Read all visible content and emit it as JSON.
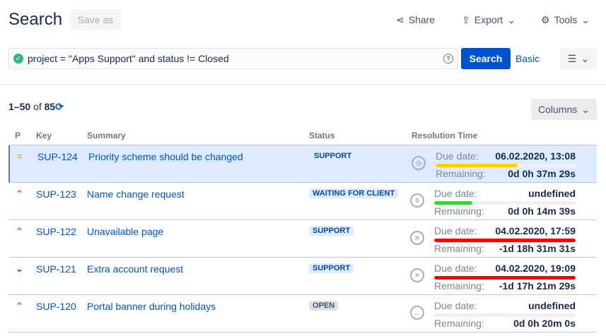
{
  "header": {
    "title": "Search",
    "save_as": "Save as",
    "share": "Share",
    "export": "Export",
    "tools": "Tools"
  },
  "search": {
    "query": "project = \"Apps Support\" and status != Closed",
    "search_label": "Search",
    "basic_label": "Basic"
  },
  "results": {
    "range": "1–50",
    "of": "of",
    "total": "85",
    "columns_label": "Columns"
  },
  "table": {
    "headers": [
      "P",
      "Key",
      "Summary",
      "Status",
      "Resolution Time"
    ],
    "rows": [
      {
        "priority": "medium",
        "priority_glyph": "=",
        "priority_color": "#ff991f",
        "key": "SUP-124",
        "summary": "Priority scheme should be changed",
        "status": "SUPPORT",
        "status_style": "blue",
        "icon": "clock-icon",
        "due_label": "Due date:",
        "due": "06.02.2020, 13:08",
        "progress": 58,
        "bar_color": "#ffd000",
        "remaining_label": "Remaining:",
        "remaining": "0d 0h 37m 29s",
        "selected": true
      },
      {
        "priority": "high",
        "priority_glyph": "⌃",
        "priority_color": "#ff5630",
        "key": "SUP-123",
        "summary": "Name change request",
        "status": "WAITING FOR CLIENT",
        "status_style": "blue",
        "icon": "pause-icon",
        "due_label": "Due date:",
        "due": "undefined",
        "progress": 27,
        "bar_color": "#22e61e",
        "remaining_label": "Remaining:",
        "remaining": "0d 0h 14m 39s"
      },
      {
        "priority": "high",
        "priority_glyph": "⌃",
        "priority_color": "#ff5630",
        "key": "SUP-122",
        "summary": "Unavailable page",
        "status": "SUPPORT",
        "status_style": "blue",
        "icon": "clock-overdue-icon",
        "due_label": "Due date:",
        "due": "04.02.2020, 17:59",
        "progress": 100,
        "bar_color": "#ff0000",
        "remaining_label": "Remaining:",
        "remaining": "-1d 18h 31m 31s"
      },
      {
        "priority": "low",
        "priority_glyph": "⌄",
        "priority_color": "#0065ff",
        "key": "SUP-121",
        "summary": "Extra account request",
        "status": "SUPPORT",
        "status_style": "blue",
        "icon": "clock-overdue-icon",
        "due_label": "Due date:",
        "due": "04.02.2020, 19:09",
        "progress": 100,
        "bar_color": "#ff0000",
        "remaining_label": "Remaining:",
        "remaining": "-1d 17h 21m 29s"
      },
      {
        "priority": "high",
        "priority_glyph": "⌃",
        "priority_color": "#ff5630",
        "key": "SUP-120",
        "summary": "Portal banner during holidays",
        "status": "OPEN",
        "status_style": "grey",
        "icon": "clock-pending-icon",
        "due_label": "Due date:",
        "due": "undefined",
        "progress": 0,
        "bar_color": "#ff0000",
        "remaining_label": "Remaining:",
        "remaining": "0d 0h 20m 0s"
      }
    ]
  }
}
